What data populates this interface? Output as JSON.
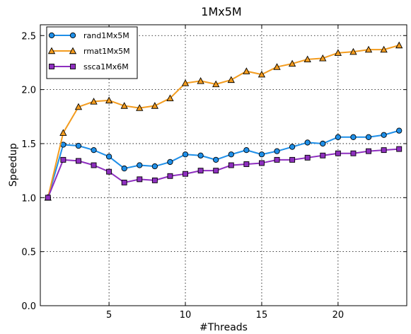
{
  "chart_data": {
    "type": "line",
    "title": "1Mx5M",
    "xlabel": "#Threads",
    "ylabel": "Speedup",
    "xlim": [
      0.5,
      24.5
    ],
    "ylim": [
      0.0,
      2.6
    ],
    "xticks": [
      5,
      10,
      15,
      20
    ],
    "yticks": [
      0.0,
      0.5,
      1.0,
      1.5,
      2.0,
      2.5
    ],
    "ytick_labels": [
      "0.0",
      "0.5",
      "1.0",
      "1.5",
      "2.0",
      "2.5"
    ],
    "grid": true,
    "legend_position": "top-left",
    "x": [
      1,
      2,
      3,
      4,
      5,
      6,
      7,
      8,
      9,
      10,
      11,
      12,
      13,
      14,
      15,
      16,
      17,
      18,
      19,
      20,
      21,
      22,
      23,
      24
    ],
    "series": [
      {
        "name": "rand1Mx5M",
        "color": "#1f8fe8",
        "marker": "circle",
        "values": [
          1.0,
          1.49,
          1.48,
          1.44,
          1.38,
          1.27,
          1.3,
          1.29,
          1.33,
          1.4,
          1.39,
          1.35,
          1.4,
          1.44,
          1.4,
          1.43,
          1.47,
          1.51,
          1.5,
          1.56,
          1.56,
          1.56,
          1.58,
          1.62
        ]
      },
      {
        "name": "rmat1Mx5M",
        "color": "#f39c1f",
        "marker": "triangle",
        "values": [
          1.0,
          1.6,
          1.84,
          1.89,
          1.9,
          1.85,
          1.83,
          1.85,
          1.92,
          2.06,
          2.08,
          2.05,
          2.09,
          2.17,
          2.14,
          2.21,
          2.24,
          2.28,
          2.29,
          2.34,
          2.35,
          2.37,
          2.37,
          2.41
        ]
      },
      {
        "name": "ssca1Mx6M",
        "color": "#8e2fbf",
        "marker": "square",
        "values": [
          1.0,
          1.35,
          1.34,
          1.3,
          1.24,
          1.14,
          1.17,
          1.16,
          1.2,
          1.22,
          1.25,
          1.25,
          1.3,
          1.31,
          1.32,
          1.35,
          1.35,
          1.37,
          1.39,
          1.41,
          1.41,
          1.43,
          1.44,
          1.45
        ]
      }
    ]
  }
}
